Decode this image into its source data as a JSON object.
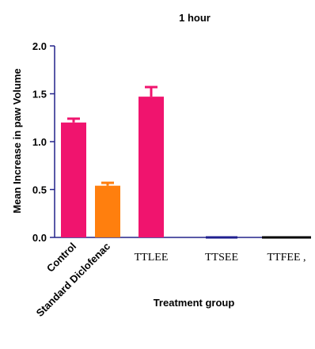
{
  "chart_data": {
    "type": "bar",
    "title": "1 hour",
    "xlabel": "Treatment group",
    "ylabel": "Mean Increase in paw Volume",
    "ylim": [
      0,
      2.0
    ],
    "yticks": [
      "0.0",
      "0.5",
      "1.0",
      "1.5",
      "2.0"
    ],
    "categories": [
      "Control",
      "Standard Diclofenac",
      "TTLEE",
      "TTSEE",
      "TTFEE ,"
    ],
    "values": [
      1.2,
      0.54,
      1.47,
      0,
      0
    ],
    "errors": [
      0.04,
      0.03,
      0.1,
      0,
      0
    ],
    "colors": [
      "#f0146e",
      "#ff7f0e",
      "#f0146e",
      "#1f1f8f",
      "#000000"
    ],
    "axis_color": "#22228a",
    "grid": false,
    "legend": "none"
  }
}
